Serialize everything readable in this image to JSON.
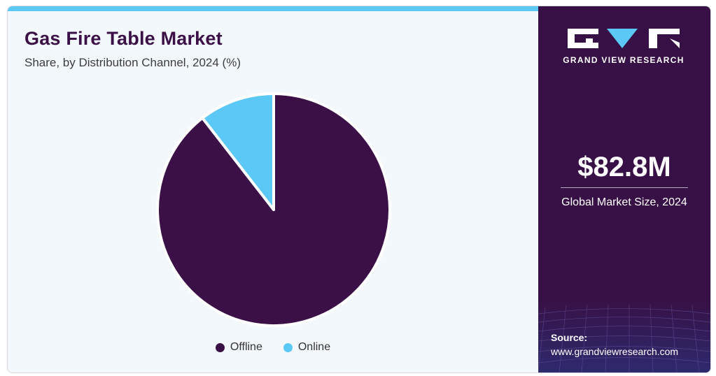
{
  "header": {
    "title": "Gas Fire Table Market",
    "subtitle": "Share, by Distribution Channel, 2024 (%)"
  },
  "chart_data": {
    "type": "pie",
    "title": "Gas Fire Table Market",
    "subtitle": "Share, by Distribution Channel, 2024 (%)",
    "categories": [
      "Offline",
      "Online"
    ],
    "values": [
      89.5,
      10.5
    ],
    "colors": [
      "#3a1047",
      "#5bc8f5"
    ],
    "legend_position": "bottom-center"
  },
  "legend": {
    "items": [
      {
        "label": "Offline",
        "color": "#3a1047"
      },
      {
        "label": "Online",
        "color": "#5bc8f5"
      }
    ]
  },
  "sidebar": {
    "brand": "GRAND VIEW RESEARCH",
    "market_size": "$82.8M",
    "market_size_label": "Global Market Size, 2024",
    "source_title": "Source:",
    "source_url": "www.grandviewresearch.com"
  },
  "colors": {
    "accent": "#5bc8f5",
    "brand_dark": "#371145",
    "background": "#f3f8fc"
  }
}
